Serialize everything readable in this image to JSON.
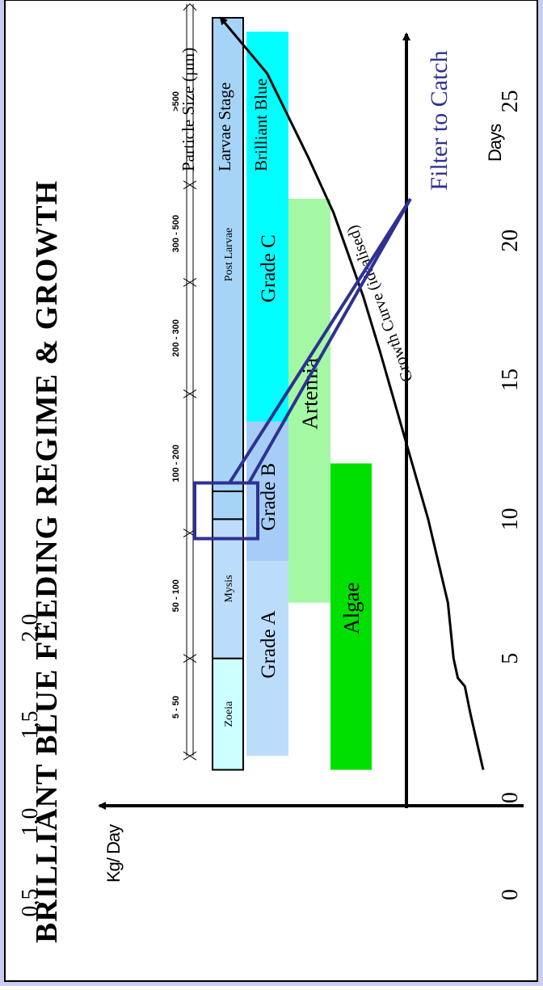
{
  "chart_data": {
    "type": "bar",
    "title": "BRILLIANT BLUE FEEDING REGIME & GROWTH",
    "xlabel": "Days",
    "ylabel": "Kg/ Day",
    "xlim": [
      0,
      28
    ],
    "ylim": [
      0,
      2.0
    ],
    "x_ticks": [
      "0",
      "5",
      "10",
      "15",
      "20",
      "25"
    ],
    "y_ticks": [
      "0,5",
      "1,0",
      "1,5",
      "2,0"
    ],
    "row_labels": {
      "particle_size": "Particle Size (µm)",
      "larvae_stage": "Larvae Stage",
      "brilliant_blue": "Brilliant Blue"
    },
    "particle_sizes": [
      {
        "label": "5 - 50",
        "from": 1.5,
        "to": 5
      },
      {
        "label": "50 - 100",
        "from": 5,
        "to": 9.5
      },
      {
        "label": "100 - 200",
        "from": 9.5,
        "to": 14.5
      },
      {
        "label": "200 - 300",
        "from": 14.5,
        "to": 18.5
      },
      {
        "label": "300 - 500",
        "from": 18.5,
        "to": 22
      },
      {
        "label": ">500",
        "from": 22,
        "to": 28
      }
    ],
    "larvae_stages": [
      {
        "label": "Zoeia",
        "from": 1,
        "to": 5
      },
      {
        "label": "Mysis",
        "from": 5,
        "to": 10
      },
      {
        "label": "",
        "from": 10,
        "to": 11
      },
      {
        "label": "Post Larvae",
        "from": 11,
        "to": 28
      }
    ],
    "feeds": [
      {
        "label": "Grade A",
        "from": 1.5,
        "to": 8.5,
        "color": "#bcdcfb"
      },
      {
        "label": "Grade B",
        "from": 8.5,
        "to": 13.5,
        "color": "#a6cdf7"
      },
      {
        "label": "Grade C",
        "from": 13.5,
        "to": 27.5,
        "color": "#00ffff"
      },
      {
        "label": "Artemia",
        "from": 7,
        "to": 21.5,
        "color": "#a4f8a4"
      },
      {
        "label": "Algae",
        "from": 1,
        "to": 12,
        "color": "#00e000"
      }
    ],
    "growth_curve": {
      "label": "Growth Curve (idealised)",
      "x": [
        1,
        3,
        4,
        4.3,
        5,
        7,
        10,
        13,
        16,
        18,
        21,
        23,
        26,
        28
      ],
      "y": [
        0.19,
        0.28,
        0.32,
        0.37,
        0.4,
        0.44,
        0.58,
        0.75,
        0.92,
        1.04,
        1.25,
        1.43,
        1.72,
        2.05
      ]
    },
    "annotation": "Filter to Catch",
    "grid": false,
    "legend": "none"
  }
}
